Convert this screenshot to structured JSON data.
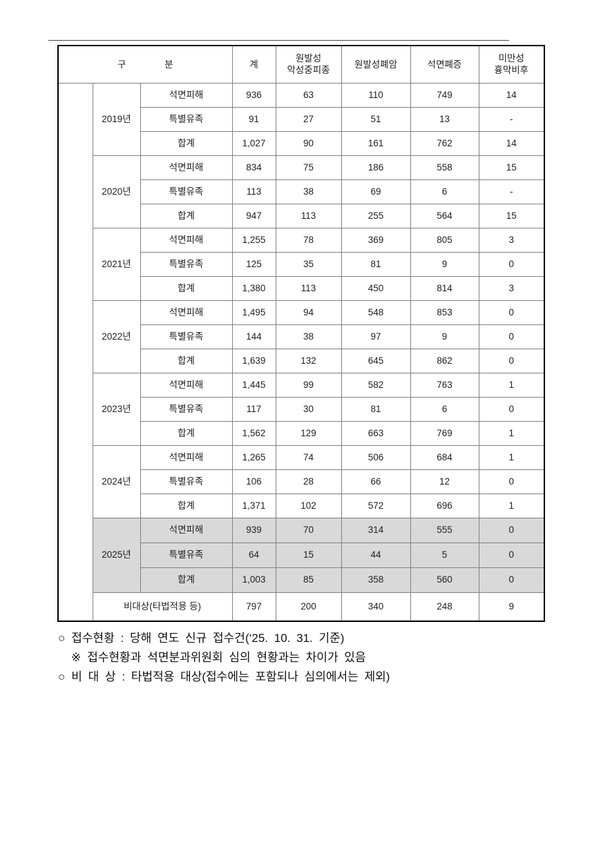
{
  "colors": {
    "highlight_bg": "#d9d9d9",
    "outer_border": "#000000",
    "inner_border": "#808080"
  },
  "table": {
    "header": {
      "gubun": {
        "left": "구",
        "right": "분"
      },
      "cols": [
        "계",
        "원발성\n악성중피종",
        "원발성폐암",
        "석면폐증",
        "미만성\n흉막비후"
      ]
    },
    "years": [
      {
        "label": "2019년",
        "highlight": false,
        "rows": [
          {
            "category": "석면피해",
            "values": [
              "936",
              "63",
              "110",
              "749",
              "14"
            ]
          },
          {
            "category": "특별유족",
            "values": [
              "91",
              "27",
              "51",
              "13",
              "-"
            ]
          },
          {
            "category": "합계",
            "values": [
              "1,027",
              "90",
              "161",
              "762",
              "14"
            ]
          }
        ]
      },
      {
        "label": "2020년",
        "highlight": false,
        "rows": [
          {
            "category": "석면피해",
            "values": [
              "834",
              "75",
              "186",
              "558",
              "15"
            ]
          },
          {
            "category": "특별유족",
            "values": [
              "113",
              "38",
              "69",
              "6",
              "-"
            ]
          },
          {
            "category": "합계",
            "values": [
              "947",
              "113",
              "255",
              "564",
              "15"
            ]
          }
        ]
      },
      {
        "label": "2021년",
        "highlight": false,
        "rows": [
          {
            "category": "석면피해",
            "values": [
              "1,255",
              "78",
              "369",
              "805",
              "3"
            ]
          },
          {
            "category": "특별유족",
            "values": [
              "125",
              "35",
              "81",
              "9",
              "0"
            ]
          },
          {
            "category": "합계",
            "values": [
              "1,380",
              "113",
              "450",
              "814",
              "3"
            ]
          }
        ]
      },
      {
        "label": "2022년",
        "highlight": false,
        "rows": [
          {
            "category": "석면피해",
            "values": [
              "1,495",
              "94",
              "548",
              "853",
              "0"
            ]
          },
          {
            "category": "특별유족",
            "values": [
              "144",
              "38",
              "97",
              "9",
              "0"
            ]
          },
          {
            "category": "합계",
            "values": [
              "1,639",
              "132",
              "645",
              "862",
              "0"
            ]
          }
        ]
      },
      {
        "label": "2023년",
        "highlight": false,
        "rows": [
          {
            "category": "석면피해",
            "values": [
              "1,445",
              "99",
              "582",
              "763",
              "1"
            ]
          },
          {
            "category": "특별유족",
            "values": [
              "117",
              "30",
              "81",
              "6",
              "0"
            ]
          },
          {
            "category": "합계",
            "values": [
              "1,562",
              "129",
              "663",
              "769",
              "1"
            ]
          }
        ]
      },
      {
        "label": "2024년",
        "highlight": false,
        "rows": [
          {
            "category": "석면피해",
            "values": [
              "1,265",
              "74",
              "506",
              "684",
              "1"
            ]
          },
          {
            "category": "특별유족",
            "values": [
              "106",
              "28",
              "66",
              "12",
              "0"
            ]
          },
          {
            "category": "합계",
            "values": [
              "1,371",
              "102",
              "572",
              "696",
              "1"
            ]
          }
        ]
      },
      {
        "label": "2025년",
        "highlight": true,
        "rows": [
          {
            "category": "석면피해",
            "values": [
              "939",
              "70",
              "314",
              "555",
              "0"
            ]
          },
          {
            "category": "특별유족",
            "values": [
              "64",
              "15",
              "44",
              "5",
              "0"
            ]
          },
          {
            "category": "합계",
            "values": [
              "1,003",
              "85",
              "358",
              "560",
              "0"
            ]
          }
        ]
      }
    ],
    "exempt_row": {
      "label": "비대상(타법적용 등)",
      "values": [
        "797",
        "200",
        "340",
        "248",
        "9"
      ]
    }
  },
  "notes": [
    {
      "bullet": "○",
      "text": "접수현황 : 당해 연도 신규 접수건(‘25. 10. 31. 기준)"
    },
    {
      "bullet": "※",
      "text": "접수현황과 석면분과위원회 심의 현황과는 차이가 있음"
    },
    {
      "bullet": "○",
      "text": "비 대 상 : 타법적용 대상(접수에는 포함되나 심의에서는 제외)"
    }
  ]
}
